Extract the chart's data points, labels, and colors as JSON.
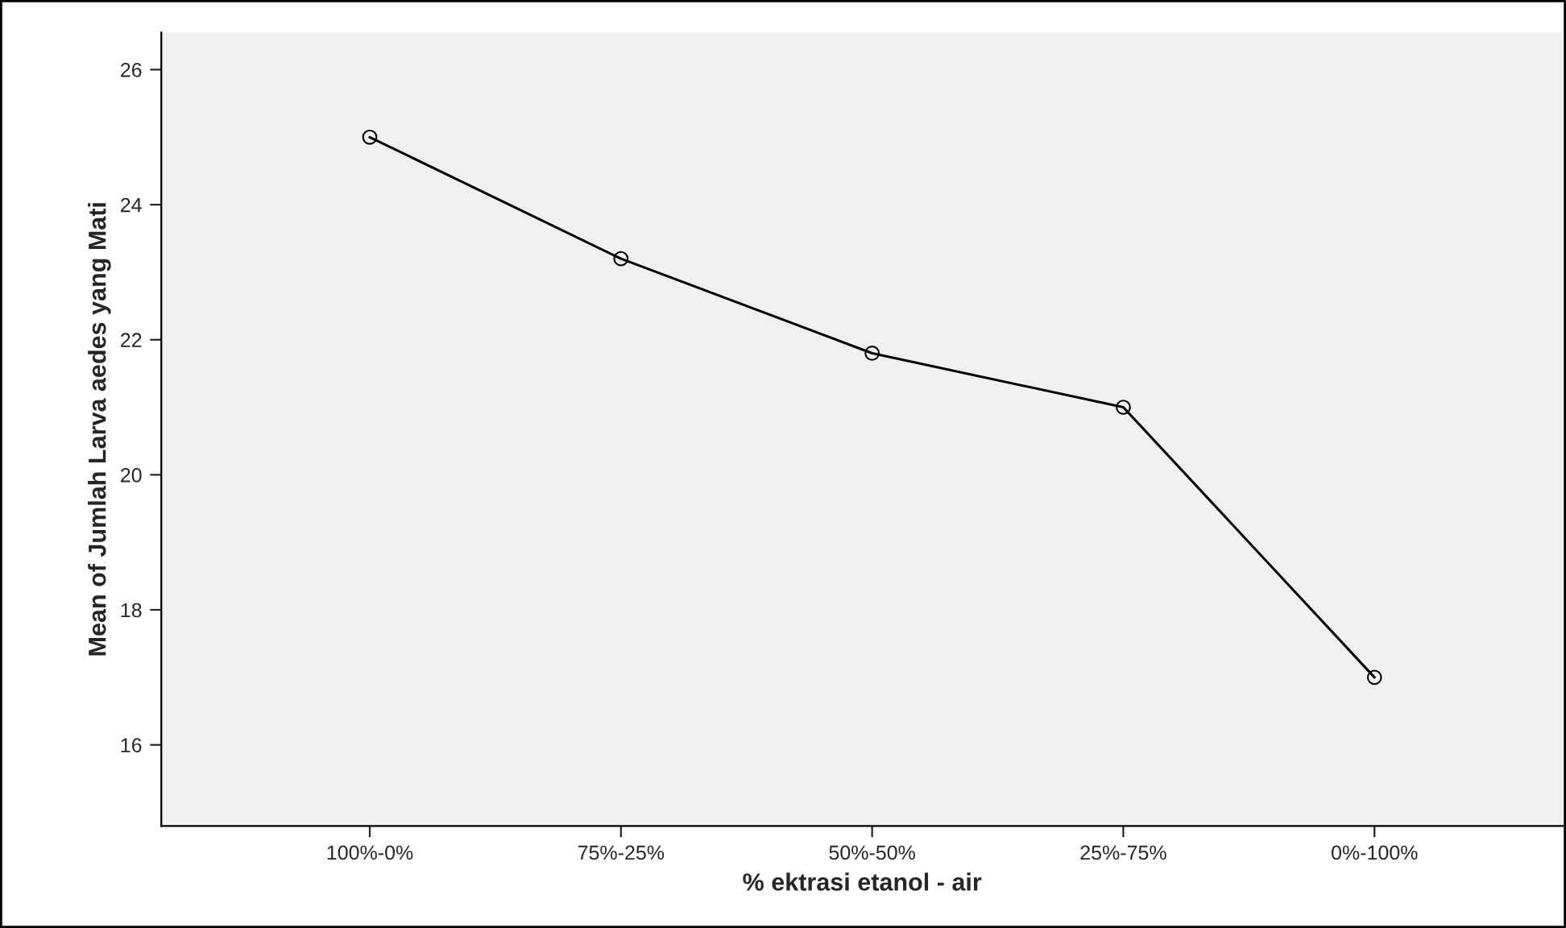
{
  "chart_data": {
    "type": "line",
    "xlabel": "% ektrasi etanol - air",
    "ylabel": "Mean of Jumlah Larva aedes yang Mati",
    "categories": [
      "100%-0%",
      "75%-25%",
      "50%-50%",
      "25%-75%",
      "0%-100%"
    ],
    "series": [
      {
        "color": "#000000",
        "values": [
          25,
          23.2,
          21.8,
          21,
          17
        ]
      }
    ],
    "ylim": [
      14.8,
      26.55
    ],
    "yticks": [
      16,
      18,
      20,
      22,
      24,
      26
    ],
    "marker": "circle",
    "grid": false,
    "legend": false
  }
}
